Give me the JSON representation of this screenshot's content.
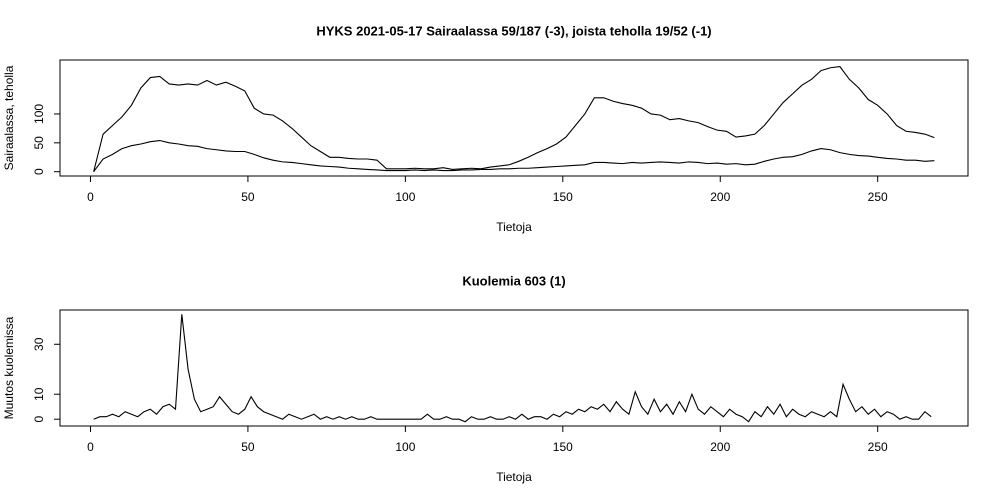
{
  "chart_data": [
    {
      "type": "line",
      "title": "HYKS 2021-05-17 Sairaalassa 59/187 (-3), joista teholla 19/52 (-1)",
      "xlabel": "Tietoja",
      "ylabel": "Sairaalassa, teholla",
      "xlim": [
        -9.68,
        278.68
      ],
      "xticks": [
        0,
        50,
        100,
        150,
        200,
        250
      ],
      "ylim": [
        -7.44,
        193.44
      ],
      "yticks": [
        0,
        50,
        100
      ],
      "x": [
        1,
        4,
        7,
        10,
        13,
        16,
        19,
        22,
        25,
        28,
        31,
        34,
        37,
        40,
        43,
        46,
        49,
        52,
        55,
        58,
        61,
        64,
        67,
        70,
        73,
        76,
        79,
        82,
        85,
        88,
        91,
        94,
        97,
        100,
        103,
        106,
        109,
        112,
        115,
        118,
        121,
        124,
        127,
        130,
        133,
        136,
        139,
        142,
        145,
        148,
        151,
        154,
        157,
        160,
        163,
        166,
        169,
        172,
        175,
        178,
        181,
        184,
        187,
        190,
        193,
        196,
        199,
        202,
        205,
        208,
        211,
        214,
        217,
        220,
        223,
        226,
        229,
        232,
        235,
        238,
        241,
        244,
        247,
        250,
        253,
        256,
        259,
        262,
        265,
        268
      ],
      "series": [
        {
          "color": "#000000",
          "values": [
            0,
            65,
            80,
            95,
            115,
            145,
            163,
            165,
            152,
            150,
            152,
            150,
            158,
            150,
            155,
            148,
            140,
            110,
            100,
            98,
            88,
            75,
            60,
            45,
            35,
            25,
            25,
            23,
            22,
            22,
            20,
            5,
            5,
            5,
            6,
            5,
            5,
            7,
            4,
            5,
            6,
            5,
            8,
            10,
            12,
            18,
            25,
            33,
            40,
            48,
            60,
            80,
            100,
            128,
            128,
            122,
            118,
            115,
            110,
            100,
            98,
            90,
            92,
            88,
            85,
            78,
            72,
            70,
            60,
            62,
            65,
            80,
            100,
            120,
            135,
            150,
            160,
            175,
            180,
            182,
            160,
            145,
            125,
            115,
            100,
            80,
            70,
            68,
            65,
            59
          ]
        },
        {
          "color": "#000000",
          "values": [
            0,
            22,
            30,
            40,
            45,
            48,
            52,
            54,
            50,
            48,
            45,
            44,
            40,
            38,
            36,
            35,
            35,
            30,
            24,
            20,
            17,
            16,
            14,
            12,
            10,
            9,
            8,
            6,
            5,
            4,
            3,
            2,
            2,
            2,
            3,
            2,
            3,
            2,
            2,
            3,
            3,
            4,
            4,
            5,
            5,
            6,
            6,
            7,
            8,
            9,
            10,
            11,
            12,
            16,
            16,
            15,
            14,
            16,
            15,
            16,
            17,
            16,
            15,
            17,
            16,
            14,
            15,
            13,
            14,
            12,
            13,
            18,
            22,
            25,
            26,
            30,
            36,
            40,
            38,
            33,
            30,
            28,
            27,
            25,
            23,
            22,
            20,
            20,
            18,
            19
          ]
        }
      ]
    },
    {
      "type": "line",
      "title": "Kuolemia 603 (1)",
      "xlabel": "Tietoja",
      "ylabel": "Muutos kuolemissa",
      "xlim": [
        -9.68,
        278.68
      ],
      "xticks": [
        0,
        50,
        100,
        150,
        200,
        250
      ],
      "ylim": [
        -2.72,
        43.72
      ],
      "yticks": [
        0,
        10,
        30
      ],
      "x": [
        1,
        3,
        5,
        7,
        9,
        11,
        13,
        15,
        17,
        19,
        21,
        23,
        25,
        27,
        29,
        31,
        33,
        35,
        37,
        39,
        41,
        43,
        45,
        47,
        49,
        51,
        53,
        55,
        57,
        59,
        61,
        63,
        65,
        67,
        69,
        71,
        73,
        75,
        77,
        79,
        81,
        83,
        85,
        87,
        89,
        91,
        93,
        95,
        97,
        99,
        101,
        103,
        105,
        107,
        109,
        111,
        113,
        115,
        117,
        119,
        121,
        123,
        125,
        127,
        129,
        131,
        133,
        135,
        137,
        139,
        141,
        143,
        145,
        147,
        149,
        151,
        153,
        155,
        157,
        159,
        161,
        163,
        165,
        167,
        169,
        171,
        173,
        175,
        177,
        179,
        181,
        183,
        185,
        187,
        189,
        191,
        193,
        195,
        197,
        199,
        201,
        203,
        205,
        207,
        209,
        211,
        213,
        215,
        217,
        219,
        221,
        223,
        225,
        227,
        229,
        231,
        233,
        235,
        237,
        239,
        241,
        243,
        245,
        247,
        249,
        251,
        253,
        255,
        257,
        259,
        261,
        263,
        265,
        267
      ],
      "series": [
        {
          "color": "#000000",
          "values": [
            0,
            1,
            1,
            2,
            1,
            3,
            2,
            1,
            3,
            4,
            2,
            5,
            6,
            4,
            42,
            20,
            8,
            3,
            4,
            5,
            9,
            6,
            3,
            2,
            4,
            9,
            5,
            3,
            2,
            1,
            0,
            2,
            1,
            0,
            1,
            2,
            0,
            1,
            0,
            1,
            0,
            1,
            0,
            0,
            1,
            0,
            0,
            0,
            0,
            0,
            0,
            0,
            0,
            2,
            0,
            0,
            1,
            0,
            0,
            -1,
            1,
            0,
            0,
            1,
            0,
            0,
            1,
            0,
            2,
            0,
            1,
            1,
            0,
            2,
            1,
            3,
            2,
            4,
            3,
            5,
            4,
            6,
            3,
            7,
            4,
            2,
            11,
            5,
            2,
            8,
            3,
            6,
            2,
            7,
            3,
            10,
            4,
            2,
            5,
            3,
            1,
            4,
            2,
            1,
            -1,
            3,
            1,
            5,
            2,
            6,
            1,
            4,
            2,
            1,
            3,
            2,
            1,
            3,
            1,
            14,
            8,
            3,
            5,
            2,
            4,
            1,
            3,
            2,
            0,
            1,
            0,
            0,
            3,
            1
          ]
        }
      ]
    }
  ]
}
